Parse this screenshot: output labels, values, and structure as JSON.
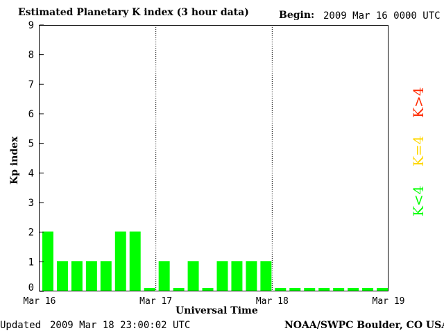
{
  "header": {
    "title": "Estimated Planetary K index (3 hour data)",
    "begin_label": "Begin:",
    "begin_value": "2009 Mar 16 0000 UTC"
  },
  "footer": {
    "updated_label": "Updated",
    "updated_value": "2009 Mar 18 23:00:02 UTC",
    "source": "NOAA/SWPC Boulder, CO USA"
  },
  "legend": {
    "low": "K<4",
    "equal": "K=4",
    "high": "K>4"
  },
  "colors": {
    "low": "#00ff00",
    "equal": "#ffd700",
    "high": "#ff2a00"
  },
  "chart_data": {
    "type": "bar",
    "ylabel": "Kp index",
    "xlabel": "Universal Time",
    "ylim": [
      0,
      9
    ],
    "yticks": [
      0,
      1,
      2,
      3,
      4,
      5,
      6,
      7,
      8,
      9
    ],
    "x_tick_labels": [
      "Mar 16",
      "Mar 17",
      "Mar 18",
      "Mar 19"
    ],
    "interval_hours": 3,
    "values": [
      2,
      1,
      1,
      1,
      1,
      2,
      2,
      0,
      1,
      0,
      1,
      0,
      1,
      1,
      1,
      1,
      0,
      0,
      0,
      0,
      0,
      0,
      0,
      0
    ],
    "day_separators": "dotted"
  }
}
